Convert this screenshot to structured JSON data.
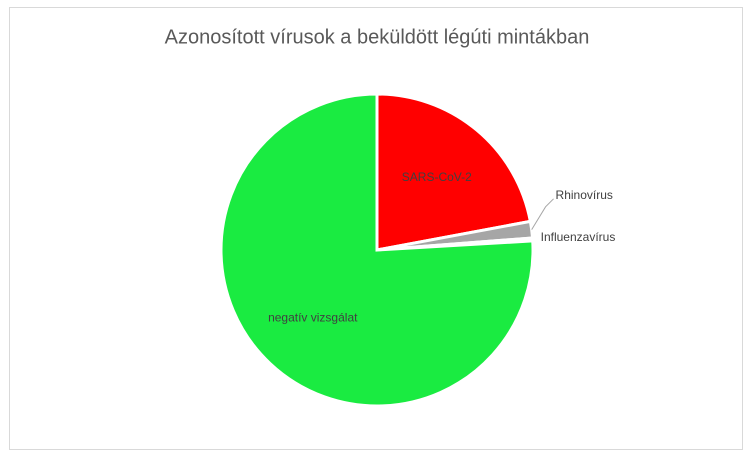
{
  "chart_data": {
    "type": "pie",
    "title": "Azonosított vírusok a beküldött légúti mintákban",
    "categories": [
      "SARS-CoV-2",
      "Rhinovírus",
      "Influenzavírus",
      "negatív vizsgálat"
    ],
    "values": [
      22,
      1.7,
      0.3,
      75.7
    ],
    "colors": [
      "#ff0000",
      "#a6a6a6",
      "#d9d9d9",
      "#1aeb41"
    ]
  }
}
